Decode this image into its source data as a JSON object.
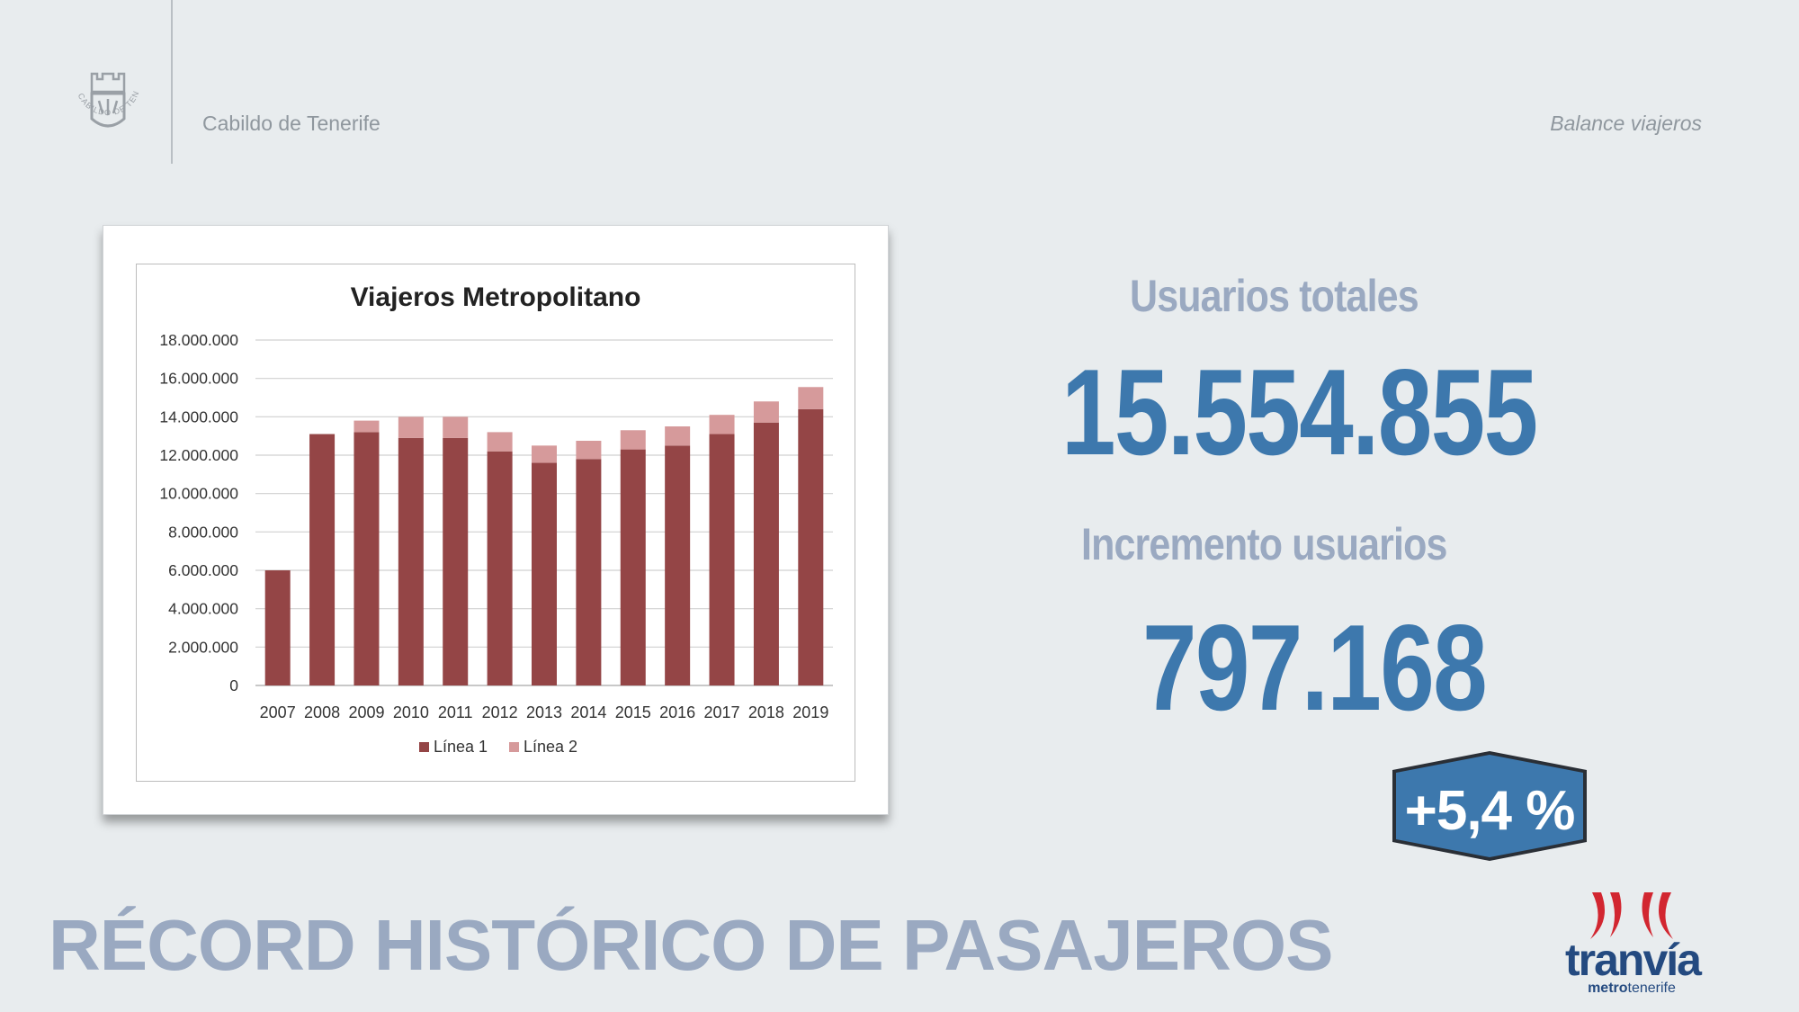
{
  "header": {
    "crest_text": "CABILDO DE TENERIFE",
    "org_name": "Cabildo de Tenerife",
    "section": "Balance viajeros"
  },
  "stats": {
    "total_label": "Usuarios totales",
    "total_value": "15.554.855",
    "increment_label": "Incremento usuarios",
    "increment_value": "797.168",
    "increment_pct": "+5,4 %"
  },
  "headline": "RÉCORD HISTÓRICO DE PASAJEROS",
  "logo": {
    "word": "tranvía",
    "sub_bold": "metro",
    "sub_regular": "tenerife"
  },
  "colors": {
    "background": "#e8ecee",
    "accent_blue": "#3d78ad",
    "label_gray_blue": "#9aa9c1",
    "linea1": "#944546",
    "linea2": "#d69a9b",
    "logo_red": "#d22630",
    "logo_navy": "#244a80"
  },
  "chart_data": {
    "type": "bar",
    "stacked": true,
    "title": "Viajeros  Metropolitano",
    "categories": [
      "2007",
      "2008",
      "2009",
      "2010",
      "2011",
      "2012",
      "2013",
      "2014",
      "2015",
      "2016",
      "2017",
      "2018",
      "2019"
    ],
    "series": [
      {
        "name": "Línea 1",
        "color": "#944546",
        "values": [
          6000000,
          13100000,
          13200000,
          12900000,
          12900000,
          12200000,
          11600000,
          11800000,
          12300000,
          12500000,
          13100000,
          13700000,
          14400000
        ]
      },
      {
        "name": "Línea 2",
        "color": "#d69a9b",
        "values": [
          0,
          0,
          600000,
          1100000,
          1100000,
          1000000,
          900000,
          950000,
          1000000,
          1000000,
          1000000,
          1100000,
          1150000
        ]
      }
    ],
    "ylim": [
      0,
      18000000
    ],
    "yticks": [
      "0",
      "2.000.000",
      "4.000.000",
      "6.000.000",
      "8.000.000",
      "10.000.000",
      "12.000.000",
      "14.000.000",
      "16.000.000",
      "18.000.000"
    ],
    "ytick_values": [
      0,
      2000000,
      4000000,
      6000000,
      8000000,
      10000000,
      12000000,
      14000000,
      16000000,
      18000000
    ],
    "grid": true,
    "legend_position": "bottom"
  }
}
